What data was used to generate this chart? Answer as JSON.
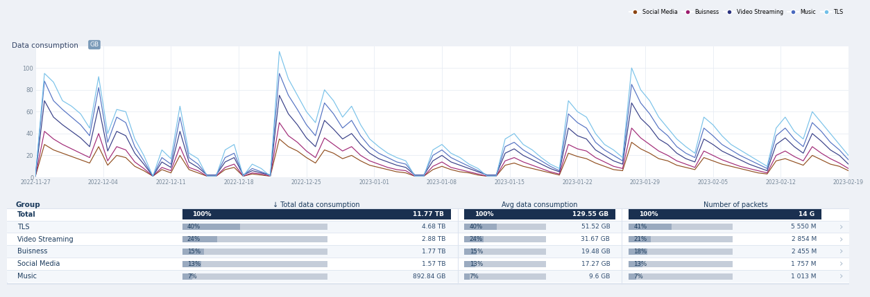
{
  "title_left": "Data consumption",
  "title_unit": "GB",
  "background_color": "#eef1f6",
  "chart_bg": "#ffffff",
  "ylim": [
    0,
    120
  ],
  "yticks": [
    0,
    20,
    40,
    60,
    80,
    100
  ],
  "x_labels": [
    "2022-11-27",
    "2022-12-04",
    "2022-12-11",
    "2022-12-18",
    "2022-12-25",
    "2023-01-01",
    "2023-01-08",
    "2023-01-15",
    "2023-01-22",
    "2023-01-29",
    "2023-02-05",
    "2023-02-12",
    "2023-02-19"
  ],
  "legend_entries": [
    {
      "label": "Social Media",
      "color": "#8B4513"
    },
    {
      "label": "Buisness",
      "color": "#9b1d6e"
    },
    {
      "label": "Video Streaming",
      "color": "#2c3480"
    },
    {
      "label": "Music",
      "color": "#4a6abf"
    },
    {
      "label": "TLS",
      "color": "#72bfe8"
    }
  ],
  "series": {
    "TLS": [
      1,
      95,
      87,
      70,
      65,
      58,
      45,
      92,
      40,
      62,
      60,
      35,
      20,
      1,
      25,
      17,
      65,
      22,
      17,
      1,
      1,
      25,
      30,
      1,
      12,
      8,
      1,
      115,
      90,
      75,
      60,
      50,
      80,
      70,
      55,
      65,
      48,
      35,
      28,
      22,
      18,
      15,
      1,
      1,
      25,
      30,
      22,
      18,
      12,
      8,
      1,
      1,
      35,
      40,
      30,
      25,
      18,
      12,
      8,
      70,
      60,
      55,
      40,
      30,
      25,
      18,
      100,
      80,
      70,
      55,
      45,
      35,
      28,
      22,
      55,
      48,
      38,
      30,
      25,
      20,
      15,
      10,
      45,
      55,
      42,
      35,
      60,
      50,
      40,
      30,
      20
    ],
    "Music": [
      1,
      88,
      70,
      62,
      55,
      48,
      38,
      82,
      32,
      55,
      50,
      28,
      15,
      1,
      18,
      12,
      55,
      18,
      12,
      2,
      2,
      18,
      22,
      2,
      8,
      5,
      2,
      95,
      75,
      62,
      48,
      38,
      68,
      58,
      45,
      52,
      38,
      28,
      22,
      18,
      14,
      12,
      2,
      2,
      20,
      25,
      18,
      14,
      10,
      6,
      2,
      2,
      28,
      32,
      25,
      20,
      15,
      10,
      6,
      58,
      50,
      45,
      32,
      25,
      20,
      15,
      85,
      68,
      58,
      45,
      38,
      28,
      22,
      18,
      45,
      38,
      30,
      25,
      20,
      16,
      12,
      8,
      38,
      45,
      35,
      28,
      50,
      42,
      32,
      25,
      16
    ],
    "Video Streaming": [
      1,
      70,
      55,
      48,
      42,
      36,
      28,
      65,
      24,
      42,
      38,
      22,
      12,
      1,
      14,
      9,
      42,
      14,
      9,
      2,
      2,
      14,
      18,
      2,
      6,
      4,
      2,
      75,
      58,
      48,
      36,
      28,
      52,
      44,
      35,
      40,
      30,
      22,
      17,
      14,
      11,
      9,
      2,
      2,
      15,
      20,
      14,
      11,
      8,
      5,
      2,
      2,
      22,
      26,
      20,
      16,
      12,
      8,
      5,
      45,
      38,
      35,
      25,
      20,
      15,
      12,
      68,
      54,
      46,
      35,
      30,
      22,
      17,
      14,
      35,
      30,
      24,
      20,
      16,
      12,
      9,
      6,
      30,
      36,
      28,
      22,
      40,
      33,
      25,
      20,
      12
    ],
    "Buisness": [
      1,
      42,
      35,
      30,
      26,
      22,
      18,
      40,
      15,
      28,
      25,
      14,
      8,
      1,
      9,
      6,
      28,
      9,
      6,
      1,
      1,
      9,
      12,
      1,
      4,
      3,
      1,
      50,
      38,
      32,
      24,
      18,
      36,
      30,
      24,
      28,
      20,
      15,
      12,
      9,
      7,
      6,
      1,
      1,
      10,
      14,
      9,
      7,
      5,
      3,
      1,
      1,
      15,
      18,
      14,
      11,
      8,
      5,
      3,
      30,
      26,
      24,
      18,
      14,
      10,
      8,
      45,
      36,
      30,
      24,
      20,
      15,
      12,
      9,
      24,
      20,
      16,
      13,
      10,
      8,
      6,
      4,
      20,
      24,
      19,
      15,
      28,
      22,
      17,
      13,
      8
    ],
    "Social Media": [
      1,
      30,
      25,
      22,
      19,
      16,
      13,
      28,
      11,
      20,
      18,
      10,
      6,
      1,
      7,
      4,
      20,
      7,
      4,
      1,
      1,
      7,
      9,
      1,
      3,
      2,
      1,
      35,
      28,
      24,
      18,
      13,
      25,
      22,
      17,
      20,
      15,
      11,
      9,
      7,
      5,
      4,
      1,
      1,
      7,
      10,
      7,
      5,
      4,
      2,
      1,
      1,
      11,
      13,
      10,
      8,
      6,
      4,
      2,
      22,
      19,
      17,
      13,
      10,
      7,
      6,
      32,
      26,
      22,
      17,
      15,
      11,
      9,
      7,
      18,
      15,
      12,
      10,
      8,
      6,
      4,
      3,
      15,
      17,
      14,
      11,
      20,
      16,
      12,
      10,
      6
    ]
  },
  "table": {
    "outer_bg": "#eef1f6",
    "card_bg": "#ffffff",
    "header_text": "#1a3a5c",
    "dark_bg": "#1a3050",
    "dark_text": "#ffffff",
    "bar_bg": "#c5cdd9",
    "bar_filled": "#9aaabf",
    "separator_color": "#dde4ef",
    "text_color": "#1a3a5c",
    "value_color": "#2c4a6e",
    "col_headers": [
      "Group",
      "↓ Total data consumption",
      "Avg data consumption",
      "Number of packets"
    ],
    "rows": [
      {
        "group": "Total",
        "pct1": "100%",
        "val1": "11.77 TB",
        "pct2": "100%",
        "val2": "129.55 GB",
        "pct3": "100%",
        "val3": "14 G",
        "highlight": true
      },
      {
        "group": "TLS",
        "pct1": "40%",
        "val1": "4.68 TB",
        "pct2": "40%",
        "val2": "51.52 GB",
        "pct3": "41%",
        "val3": "5 550 M",
        "highlight": false
      },
      {
        "group": "Video Streaming",
        "pct1": "24%",
        "val1": "2.88 TB",
        "pct2": "24%",
        "val2": "31.67 GB",
        "pct3": "21%",
        "val3": "2 854 M",
        "highlight": false
      },
      {
        "group": "Buisness",
        "pct1": "15%",
        "val1": "1.77 TB",
        "pct2": "15%",
        "val2": "19.48 GB",
        "pct3": "18%",
        "val3": "2 455 M",
        "highlight": false
      },
      {
        "group": "Social Media",
        "pct1": "13%",
        "val1": "1.57 TB",
        "pct2": "13%",
        "val2": "17.27 GB",
        "pct3": "13%",
        "val3": "1 757 M",
        "highlight": false
      },
      {
        "group": "Music",
        "pct1": "7%",
        "val1": "892.84 GB",
        "pct2": "7%",
        "val2": "9.6 GB",
        "pct3": "7%",
        "val3": "1 013 M",
        "highlight": false
      }
    ],
    "bar_widths": {
      "Total": [
        1.0,
        1.0,
        1.0
      ],
      "TLS": [
        0.4,
        0.4,
        0.41
      ],
      "Video Streaming": [
        0.24,
        0.24,
        0.21
      ],
      "Buisness": [
        0.15,
        0.15,
        0.18
      ],
      "Social Media": [
        0.13,
        0.13,
        0.13
      ],
      "Music": [
        0.07,
        0.07,
        0.07
      ]
    }
  }
}
